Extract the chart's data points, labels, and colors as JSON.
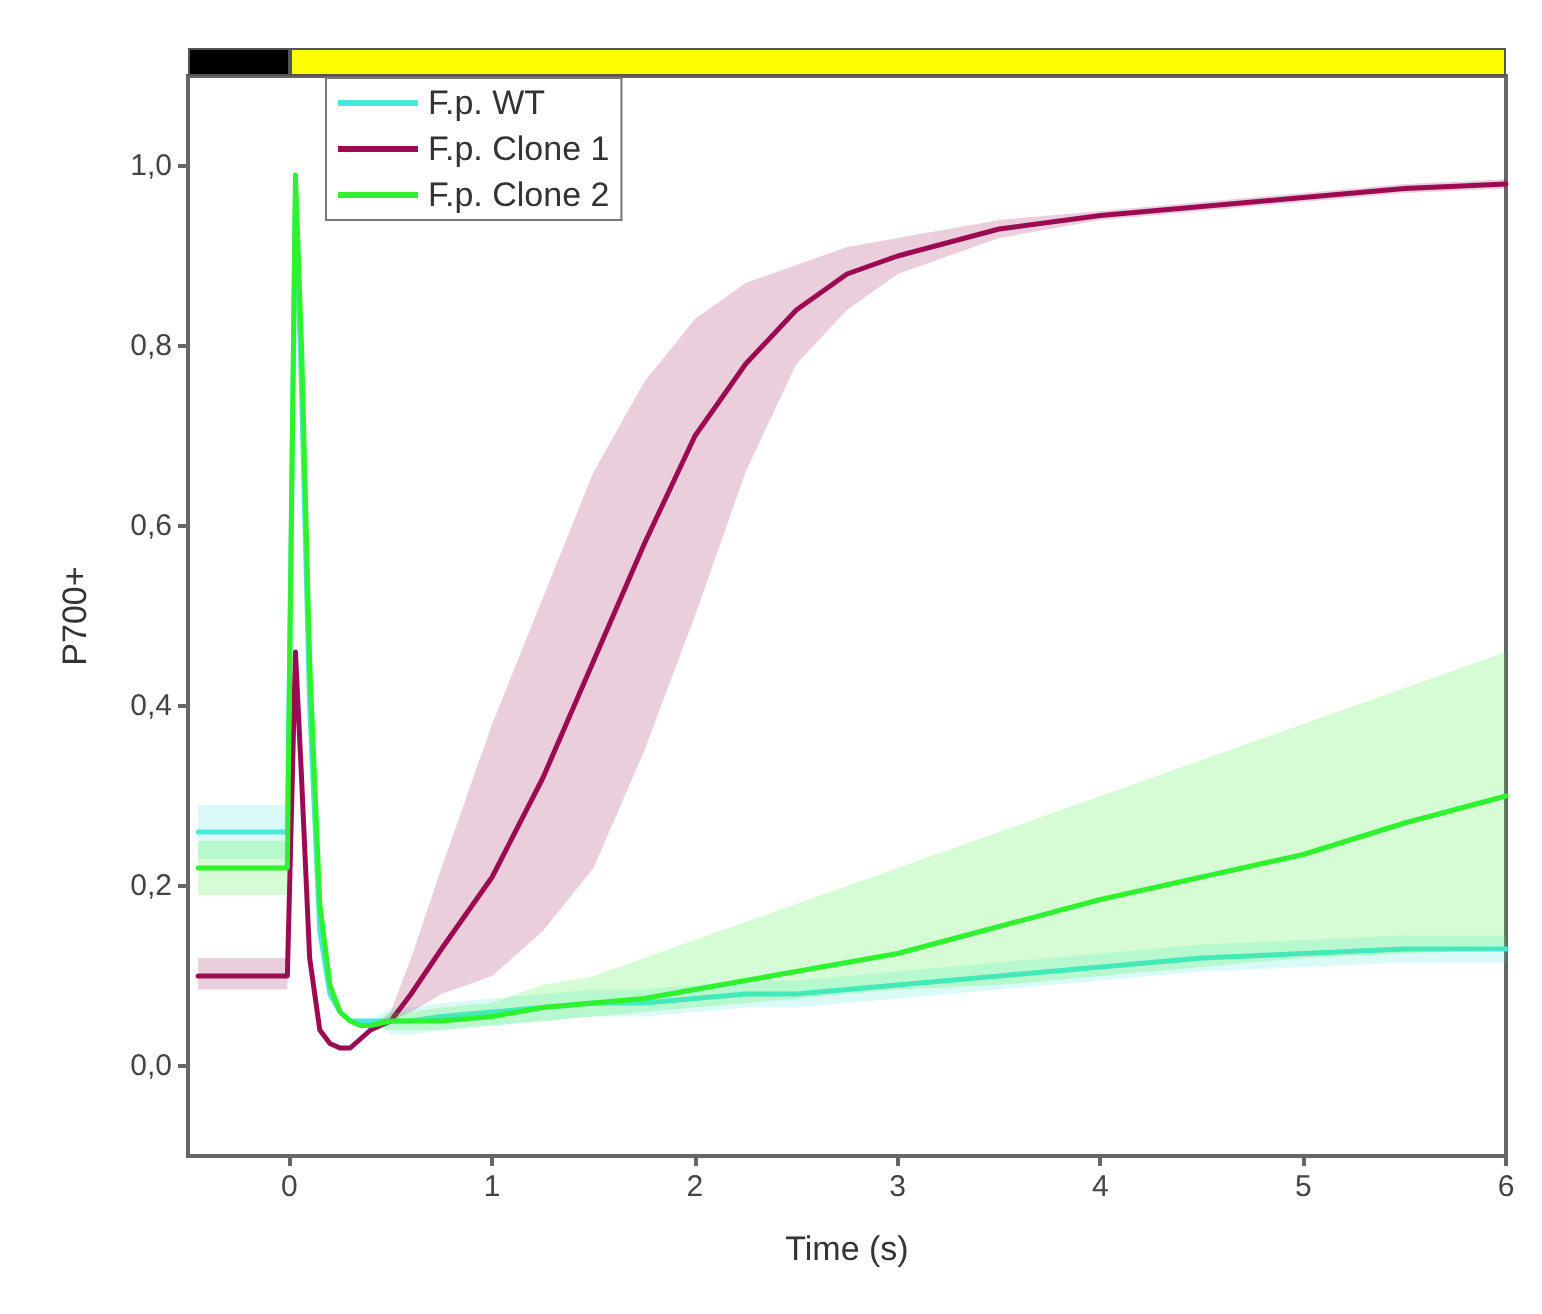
{
  "chart_data": {
    "type": "line",
    "xlabel": "Time (s)",
    "ylabel": "P700+",
    "x": [
      -0.45,
      -0.3,
      -0.15,
      -0.01,
      0.03,
      0.06,
      0.1,
      0.15,
      0.2,
      0.25,
      0.3,
      0.35,
      0.4,
      0.5,
      0.6,
      0.75,
      1,
      1.25,
      1.5,
      1.75,
      2,
      2.25,
      2.5,
      2.75,
      3,
      3.5,
      4,
      4.5,
      5,
      5.5,
      6
    ],
    "series": [
      {
        "name": "F.p. WT",
        "color": "#48e8dc",
        "values": [
          0.26,
          0.26,
          0.26,
          0.26,
          0.97,
          0.75,
          0.4,
          0.15,
          0.08,
          0.06,
          0.05,
          0.05,
          0.05,
          0.05,
          0.05,
          0.055,
          0.06,
          0.065,
          0.07,
          0.07,
          0.075,
          0.08,
          0.08,
          0.085,
          0.09,
          0.1,
          0.11,
          0.12,
          0.125,
          0.13,
          0.13
        ],
        "lower": [
          0.23,
          0.23,
          0.23,
          0.23,
          0.97,
          0.75,
          0.4,
          0.15,
          0.08,
          0.06,
          0.05,
          0.05,
          0.05,
          0.035,
          0.035,
          0.04,
          0.045,
          0.05,
          0.055,
          0.055,
          0.06,
          0.065,
          0.065,
          0.07,
          0.075,
          0.085,
          0.095,
          0.105,
          0.11,
          0.115,
          0.115
        ],
        "upper": [
          0.29,
          0.29,
          0.29,
          0.29,
          0.97,
          0.75,
          0.4,
          0.15,
          0.08,
          0.06,
          0.05,
          0.05,
          0.05,
          0.065,
          0.065,
          0.07,
          0.075,
          0.08,
          0.085,
          0.085,
          0.09,
          0.095,
          0.095,
          0.1,
          0.105,
          0.115,
          0.125,
          0.135,
          0.14,
          0.145,
          0.145
        ]
      },
      {
        "name": "F.p. Clone 1",
        "color": "#9b0a52",
        "values": [
          0.1,
          0.1,
          0.1,
          0.1,
          0.46,
          0.32,
          0.12,
          0.04,
          0.025,
          0.02,
          0.02,
          0.03,
          0.04,
          0.05,
          0.08,
          0.13,
          0.21,
          0.32,
          0.45,
          0.58,
          0.7,
          0.78,
          0.84,
          0.88,
          0.9,
          0.93,
          0.945,
          0.955,
          0.965,
          0.975,
          0.98
        ],
        "lower": [
          0.085,
          0.085,
          0.085,
          0.085,
          0.46,
          0.32,
          0.12,
          0.04,
          0.025,
          0.02,
          0.02,
          0.03,
          0.04,
          0.05,
          0.06,
          0.08,
          0.1,
          0.15,
          0.22,
          0.35,
          0.5,
          0.66,
          0.78,
          0.84,
          0.88,
          0.92,
          0.94,
          0.95,
          0.96,
          0.97,
          0.975
        ],
        "upper": [
          0.12,
          0.12,
          0.12,
          0.12,
          0.46,
          0.32,
          0.12,
          0.04,
          0.025,
          0.02,
          0.02,
          0.03,
          0.04,
          0.06,
          0.12,
          0.22,
          0.38,
          0.52,
          0.66,
          0.76,
          0.83,
          0.87,
          0.89,
          0.91,
          0.92,
          0.94,
          0.95,
          0.96,
          0.97,
          0.98,
          0.985
        ]
      },
      {
        "name": "F.p. Clone 2",
        "color": "#2ef22e",
        "values": [
          0.22,
          0.22,
          0.22,
          0.22,
          0.99,
          0.8,
          0.45,
          0.18,
          0.09,
          0.06,
          0.05,
          0.045,
          0.045,
          0.05,
          0.05,
          0.05,
          0.055,
          0.065,
          0.07,
          0.075,
          0.085,
          0.095,
          0.105,
          0.115,
          0.125,
          0.155,
          0.185,
          0.21,
          0.235,
          0.27,
          0.3
        ],
        "lower": [
          0.19,
          0.19,
          0.19,
          0.19,
          0.99,
          0.8,
          0.45,
          0.18,
          0.09,
          0.06,
          0.05,
          0.045,
          0.045,
          0.04,
          0.04,
          0.04,
          0.045,
          0.05,
          0.055,
          0.06,
          0.065,
          0.07,
          0.075,
          0.08,
          0.085,
          0.09,
          0.1,
          0.11,
          0.12,
          0.125,
          0.13
        ],
        "upper": [
          0.25,
          0.25,
          0.25,
          0.25,
          0.99,
          0.8,
          0.45,
          0.18,
          0.09,
          0.06,
          0.05,
          0.045,
          0.045,
          0.06,
          0.06,
          0.065,
          0.07,
          0.09,
          0.1,
          0.12,
          0.14,
          0.16,
          0.18,
          0.2,
          0.22,
          0.26,
          0.3,
          0.34,
          0.38,
          0.42,
          0.46
        ]
      }
    ],
    "xlim": [
      -0.5,
      6
    ],
    "xticks": [
      0,
      1,
      2,
      3,
      4,
      5,
      6
    ],
    "ylim": [
      -0.1,
      1.1
    ],
    "yticks": [
      {
        "value": 0,
        "label": "0,0"
      },
      {
        "value": 0.2,
        "label": "0,2"
      },
      {
        "value": 0.4,
        "label": "0,4"
      },
      {
        "value": 0.6,
        "label": "0,6"
      },
      {
        "value": 0.8,
        "label": "0,8"
      },
      {
        "value": 1,
        "label": "1,0"
      }
    ],
    "grid": false,
    "legend": "top left",
    "marker": "none",
    "line_style": "solid"
  }
}
